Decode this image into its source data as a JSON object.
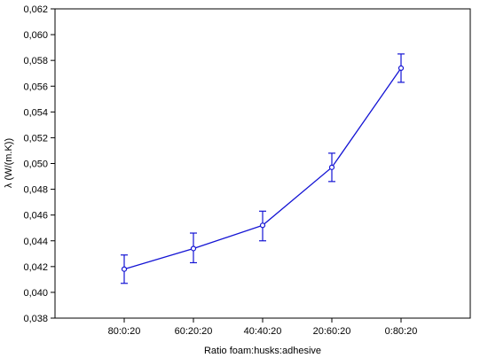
{
  "chart_data": {
    "type": "line",
    "title": "",
    "xlabel": "Ratio foam:husks:adhesive",
    "ylabel": "λ (W/(m.K))",
    "categories": [
      "80:0:20",
      "60:20:20",
      "40:40:20",
      "20:60:20",
      "0:80:20"
    ],
    "series": [
      {
        "values": [
          0.0418,
          0.0434,
          0.0452,
          0.0497,
          0.0574
        ],
        "error_low": [
          0.0407,
          0.0423,
          0.044,
          0.0486,
          0.0563
        ],
        "error_high": [
          0.0429,
          0.0446,
          0.0463,
          0.0508,
          0.0585
        ]
      }
    ],
    "ylim": [
      0.038,
      0.062
    ],
    "yticks": [
      "0,038",
      "0,040",
      "0,042",
      "0,044",
      "0,046",
      "0,048",
      "0,050",
      "0,052",
      "0,054",
      "0,056",
      "0,058",
      "0,060",
      "0,062"
    ],
    "grid": false,
    "line_color": "#1414d4"
  }
}
